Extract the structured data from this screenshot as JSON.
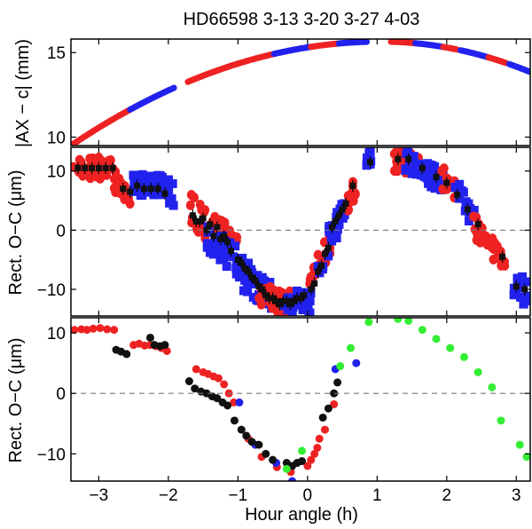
{
  "chart_data": {
    "type": "scatter",
    "title": "HD66598  3-13 3-20 3-27 4-03",
    "xlabel": "Hour angle (h)",
    "xlim": [
      -3.4,
      3.2
    ],
    "x_ticks": [
      -3,
      -2,
      -1,
      0,
      1,
      2,
      3
    ],
    "x_tick_labels": [
      "−3",
      "−2",
      "−1",
      "0",
      "1",
      "2",
      "3"
    ],
    "colors": {
      "red": "#ee2222",
      "blue": "#2222ee",
      "black": "#111111",
      "green": "#33ee33",
      "dashed": "#777777"
    },
    "panels": [
      {
        "id": "top",
        "ylabel": "|AX − c| (mm)",
        "ylim": [
          9.5,
          15.8
        ],
        "y_ticks": [
          10,
          15
        ],
        "y_tick_labels": [
          "10",
          "15"
        ],
        "curve": {
          "peak_x": 1.05,
          "peak_y": 15.65,
          "start_x": -3.4,
          "start_y": 9.5,
          "right_end_y": 13.85
        },
        "segments": [
          {
            "x0": -3.38,
            "x1": -2.75,
            "color": "red"
          },
          {
            "x0": -2.72,
            "x1": -2.55,
            "color": "red"
          },
          {
            "x0": -2.55,
            "x1": -2.2,
            "color": "blue"
          },
          {
            "x0": -2.2,
            "x1": -1.92,
            "color": "blue"
          },
          {
            "x0": -1.72,
            "x1": -1.0,
            "color": "red"
          },
          {
            "x0": -1.0,
            "x1": -0.48,
            "color": "red"
          },
          {
            "x0": -0.48,
            "x1": 0.05,
            "color": "blue"
          },
          {
            "x0": 0.05,
            "x1": 0.45,
            "color": "red"
          },
          {
            "x0": 0.45,
            "x1": 0.85,
            "color": "blue"
          },
          {
            "x0": 1.2,
            "x1": 1.55,
            "color": "red"
          },
          {
            "x0": 1.55,
            "x1": 1.95,
            "color": "blue"
          },
          {
            "x0": 1.95,
            "x1": 2.15,
            "color": "red"
          },
          {
            "x0": 2.2,
            "x1": 2.6,
            "color": "blue"
          },
          {
            "x0": 2.6,
            "x1": 2.85,
            "color": "red"
          },
          {
            "x0": 2.9,
            "x1": 3.18,
            "color": "blue"
          }
        ]
      },
      {
        "id": "middle",
        "ylabel": "Rect. O−C (μm)",
        "ylim": [
          -14.5,
          14
        ],
        "y_ticks": [
          -10,
          0,
          10
        ],
        "y_tick_labels": [
          "−10",
          "0",
          "10"
        ],
        "dashed_zero": true,
        "clouds": [
          {
            "x0": -3.38,
            "x1": -2.78,
            "y0": 10.5,
            "y1": 10.5,
            "spread": 1.8,
            "color": "red"
          },
          {
            "x0": -2.78,
            "x1": -2.55,
            "y0": 8.0,
            "y1": 4.5,
            "spread": 2.5,
            "color": "red"
          },
          {
            "x0": -2.55,
            "x1": -2.05,
            "y0": 8.0,
            "y1": 7.0,
            "spread": 1.8,
            "color": "blue"
          },
          {
            "x0": -2.2,
            "x1": -1.92,
            "y0": 8.0,
            "y1": 6.0,
            "spread": 2.0,
            "color": "blue"
          },
          {
            "x0": -1.7,
            "x1": -1.0,
            "y0": 3.5,
            "y1": -3.0,
            "spread": 2.8,
            "color": "red"
          },
          {
            "x0": -1.45,
            "x1": -0.8,
            "y0": -1.0,
            "y1": -7.5,
            "spread": 2.5,
            "color": "blue"
          },
          {
            "x0": -1.0,
            "x1": -0.5,
            "y0": -7.0,
            "y1": -11.5,
            "spread": 2.5,
            "color": "blue"
          },
          {
            "x0": -0.7,
            "x1": -0.2,
            "y0": -11.0,
            "y1": -12.5,
            "spread": 2.0,
            "color": "red"
          },
          {
            "x0": -0.35,
            "x1": 0.05,
            "y0": -12.0,
            "y1": -12.5,
            "spread": 2.0,
            "color": "blue"
          },
          {
            "x0": 0.0,
            "x1": 0.35,
            "y0": -10.0,
            "y1": -1.0,
            "spread": 2.5,
            "color": "red"
          },
          {
            "x0": 0.15,
            "x1": 0.45,
            "y0": -6.0,
            "y1": 2.0,
            "spread": 2.5,
            "color": "blue"
          },
          {
            "x0": 0.45,
            "x1": 0.6,
            "y0": 2.0,
            "y1": 5.5,
            "spread": 2.0,
            "color": "blue"
          },
          {
            "x0": 0.58,
            "x1": 0.7,
            "y0": 4.0,
            "y1": 8.0,
            "spread": 2.0,
            "color": "red"
          },
          {
            "x0": 0.85,
            "x1": 0.92,
            "y0": 12.0,
            "y1": 12.5,
            "spread": 1.2,
            "color": "blue"
          },
          {
            "x0": 1.22,
            "x1": 1.62,
            "y0": 12.0,
            "y1": 11.0,
            "spread": 2.0,
            "color": "red"
          },
          {
            "x0": 1.4,
            "x1": 1.95,
            "y0": 12.0,
            "y1": 8.0,
            "spread": 2.0,
            "color": "blue"
          },
          {
            "x0": 1.92,
            "x1": 2.12,
            "y0": 9.0,
            "y1": 7.0,
            "spread": 2.0,
            "color": "red"
          },
          {
            "x0": 2.12,
            "x1": 2.42,
            "y0": 7.0,
            "y1": 1.5,
            "spread": 2.0,
            "color": "blue"
          },
          {
            "x0": 2.38,
            "x1": 2.6,
            "y0": 1.0,
            "y1": -2.0,
            "spread": 2.0,
            "color": "red"
          },
          {
            "x0": 2.65,
            "x1": 2.85,
            "y0": -3.0,
            "y1": -6.0,
            "spread": 2.0,
            "color": "red"
          },
          {
            "x0": 2.95,
            "x1": 3.18,
            "y0": -9.0,
            "y1": -11.0,
            "spread": 2.5,
            "color": "blue"
          }
        ],
        "points": [
          [
            -3.3,
            10.5
          ],
          [
            -3.2,
            10.5
          ],
          [
            -3.1,
            10.5
          ],
          [
            -3.0,
            10.5
          ],
          [
            -2.9,
            10.5
          ],
          [
            -2.8,
            10.5
          ],
          [
            -2.65,
            7
          ],
          [
            -2.55,
            6.5
          ],
          [
            -2.45,
            7.5
          ],
          [
            -2.35,
            7
          ],
          [
            -2.25,
            7
          ],
          [
            -2.15,
            7
          ],
          [
            -2.05,
            6.2
          ],
          [
            -1.65,
            2.5
          ],
          [
            -1.6,
            1.5
          ],
          [
            -1.55,
            1.5
          ],
          [
            -1.5,
            2
          ],
          [
            -1.45,
            0
          ],
          [
            -1.4,
            1
          ],
          [
            -1.35,
            -1
          ],
          [
            -1.3,
            0.5
          ],
          [
            -1.25,
            -1.5
          ],
          [
            -1.2,
            -1
          ],
          [
            -1.15,
            -2
          ],
          [
            -1.1,
            -3.5
          ],
          [
            -1.0,
            -5
          ],
          [
            -0.95,
            -5.5
          ],
          [
            -0.9,
            -6.5
          ],
          [
            -0.85,
            -7
          ],
          [
            -0.8,
            -8
          ],
          [
            -0.75,
            -8.5
          ],
          [
            -0.7,
            -9.5
          ],
          [
            -0.65,
            -10
          ],
          [
            -0.6,
            -11
          ],
          [
            -0.55,
            -11.5
          ],
          [
            -0.5,
            -11.5
          ],
          [
            -0.45,
            -12
          ],
          [
            -0.4,
            -12.5
          ],
          [
            -0.35,
            -12
          ],
          [
            -0.3,
            -12
          ],
          [
            -0.25,
            -12.5
          ],
          [
            -0.2,
            -12
          ],
          [
            -0.15,
            -11.5
          ],
          [
            -0.1,
            -11.5
          ],
          [
            -0.05,
            -11
          ],
          [
            0.05,
            -10
          ],
          [
            0.1,
            -9
          ],
          [
            0.15,
            -7
          ],
          [
            0.2,
            -6
          ],
          [
            0.25,
            -4
          ],
          [
            0.3,
            -3
          ],
          [
            0.35,
            0.5
          ],
          [
            0.4,
            1.5
          ],
          [
            0.45,
            2.5
          ],
          [
            0.5,
            3.5
          ],
          [
            0.55,
            4.5
          ],
          [
            0.65,
            7.5
          ],
          [
            0.9,
            11.5
          ],
          [
            1.3,
            12
          ],
          [
            1.45,
            12
          ],
          [
            1.65,
            10.5
          ],
          [
            1.85,
            9
          ],
          [
            2.0,
            8
          ],
          [
            2.15,
            6
          ],
          [
            2.3,
            3.5
          ],
          [
            2.45,
            1
          ],
          [
            2.8,
            -4.5
          ],
          [
            3.0,
            -9.5
          ],
          [
            3.12,
            -10
          ]
        ],
        "error_bar": 1.0
      },
      {
        "id": "bottom",
        "ylabel": "Rect. O−C (μm)",
        "ylim": [
          -14.5,
          12.5
        ],
        "y_ticks": [
          -10,
          0,
          10
        ],
        "y_tick_labels": [
          "−10",
          "0",
          "10"
        ],
        "dashed_zero": true,
        "series": [
          {
            "name": "red",
            "color": "red",
            "x": [
              -3.35,
              -3.25,
              -3.17,
              -3.08,
              -2.98,
              -2.88,
              -2.78,
              -2.5,
              -2.42,
              -2.34,
              -2.26,
              -2.18,
              -2.1,
              -2.02,
              -1.6,
              -1.5,
              -1.43,
              -1.35,
              -1.28,
              -1.2,
              -1.13,
              -1.06,
              -0.85,
              -0.66,
              -0.44,
              -0.24,
              0.0,
              0.05,
              0.1,
              0.14,
              0.17,
              0.25,
              0.38
            ],
            "y": [
              10.5,
              10.6,
              10.5,
              10.7,
              10.8,
              10.6,
              10.5,
              8.0,
              8.2,
              7.9,
              8.0,
              7.8,
              7.5,
              7.0,
              4.0,
              3.5,
              3.2,
              2.8,
              2.5,
              1.5,
              0.0,
              -1.5,
              -7.5,
              -10.5,
              -12.2,
              -13.0,
              -12.0,
              -11.0,
              -10.0,
              -9.0,
              -7.5,
              -6.0,
              -1.8
            ]
          },
          {
            "name": "blue",
            "color": "blue",
            "x": [
              -0.98,
              -0.75,
              -0.45,
              -0.22,
              0.4,
              0.7
            ],
            "y": [
              -1.5,
              -8.5,
              -11.5,
              -14.5,
              4.0,
              5.0
            ]
          },
          {
            "name": "black",
            "color": "black",
            "x": [
              -2.75,
              -2.68,
              -2.6,
              -2.26,
              -2.2,
              -2.12,
              -2.05,
              -1.7,
              -1.62,
              -1.53,
              -1.45,
              -1.37,
              -1.3,
              -1.22,
              -1.15,
              -1.05,
              -0.95,
              -0.88,
              -0.8,
              -0.7,
              -0.6,
              -0.5,
              -0.3,
              -0.22,
              -0.15,
              -0.08,
              0.22,
              0.3,
              0.38,
              0.43
            ],
            "y": [
              7.2,
              6.9,
              6.5,
              9.2,
              8.0,
              7.8,
              8.0,
              2.0,
              0.8,
              0.3,
              0.0,
              -0.5,
              -0.8,
              -1.5,
              -2.0,
              -4.5,
              -6.0,
              -7.0,
              -8.0,
              -8.5,
              -10.0,
              -11.0,
              -11.5,
              -12.0,
              -11.5,
              -11.2,
              -4.0,
              -2.5,
              0.0,
              1.8
            ]
          },
          {
            "name": "green",
            "color": "green",
            "x": [
              -0.3,
              -0.08,
              0.47,
              0.62,
              0.88,
              1.3,
              1.45,
              1.65,
              1.85,
              2.05,
              2.25,
              2.45,
              2.65,
              2.78,
              3.05,
              3.15
            ],
            "y": [
              -12.5,
              -9.5,
              4.5,
              7.5,
              11.8,
              12.3,
              12.0,
              10.5,
              9.0,
              7.5,
              6.0,
              3.5,
              1.0,
              -4.5,
              -8.5,
              -10.5
            ]
          }
        ]
      }
    ]
  }
}
